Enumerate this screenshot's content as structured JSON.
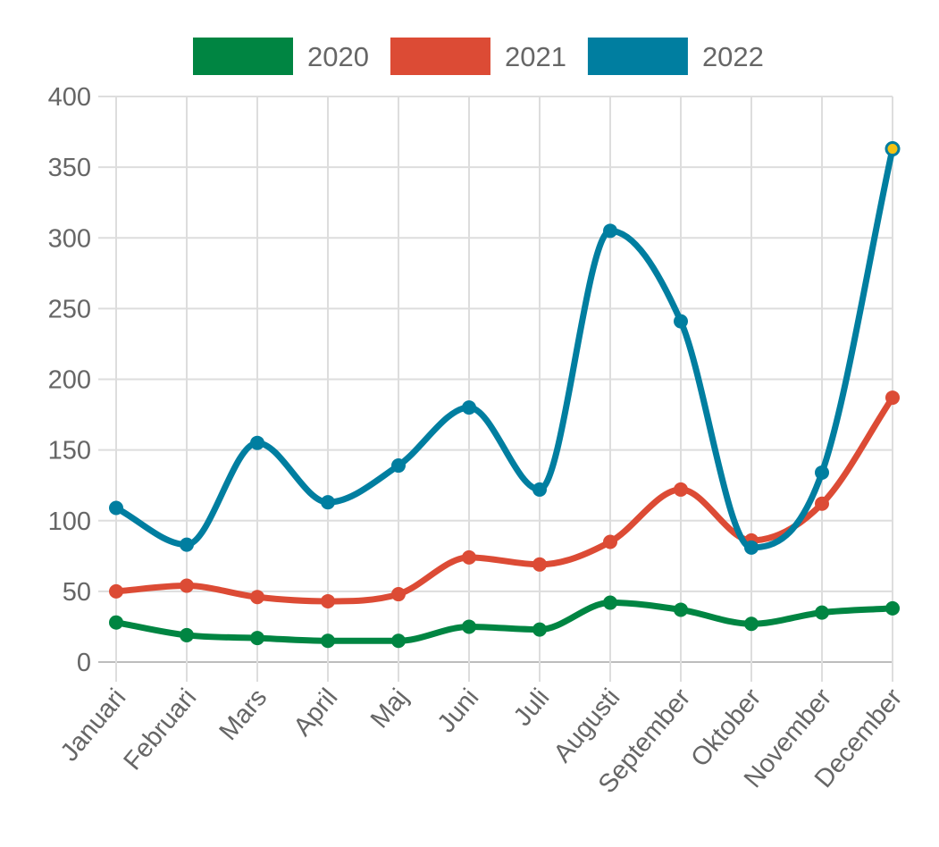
{
  "chart_data": {
    "type": "line",
    "title": "",
    "xlabel": "",
    "ylabel": "",
    "categories": [
      "Januari",
      "Februari",
      "Mars",
      "April",
      "Maj",
      "Juni",
      "Juli",
      "Augusti",
      "September",
      "Oktober",
      "November",
      "December"
    ],
    "ylim": [
      0,
      400
    ],
    "yticks": [
      0,
      50,
      100,
      150,
      200,
      250,
      300,
      350,
      400
    ],
    "grid": true,
    "legend_position": "top-center",
    "curve": "smooth",
    "series": [
      {
        "name": "2020",
        "color": "#008542",
        "values": [
          28,
          19,
          17,
          15,
          15,
          25,
          23,
          42,
          37,
          27,
          35,
          38
        ]
      },
      {
        "name": "2021",
        "color": "#dc4b35",
        "values": [
          50,
          54,
          46,
          43,
          48,
          74,
          69,
          85,
          122,
          86,
          112,
          187
        ]
      },
      {
        "name": "2022",
        "color": "#007ea0",
        "values": [
          109,
          83,
          155,
          113,
          139,
          180,
          122,
          305,
          241,
          81,
          134,
          363
        ]
      }
    ],
    "highlight": {
      "series": "2022",
      "category": "December",
      "fill": "#f2c314"
    }
  }
}
